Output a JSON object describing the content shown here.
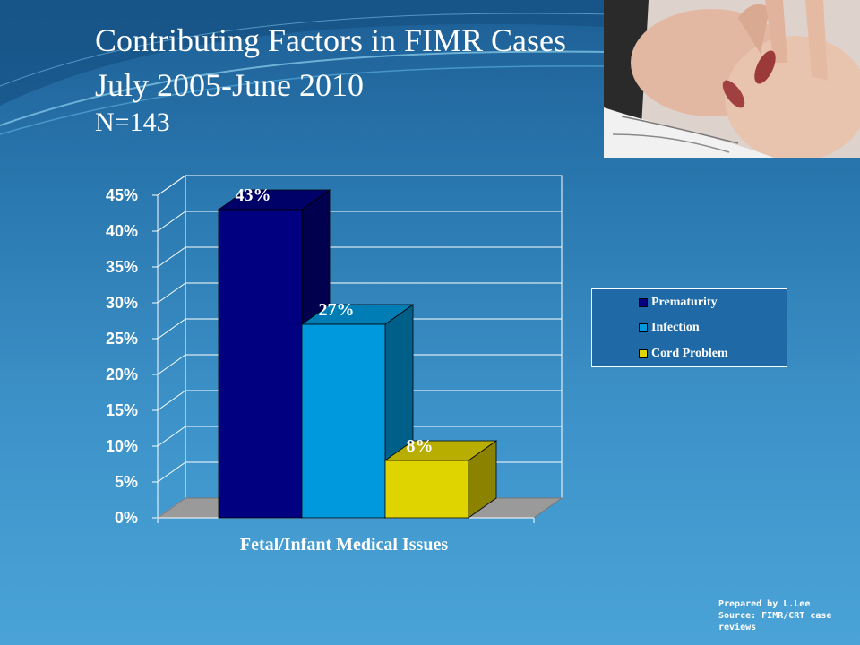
{
  "slide": {
    "title_line1": "Contributing Factors in FIMR Cases",
    "title_line2": "July 2005-June 2010",
    "title_line3": "N=143",
    "credits": [
      "Prepared by L.Lee",
      "Source: FIMR/CRT case",
      "reviews"
    ]
  },
  "chart_data": {
    "type": "bar",
    "title": "",
    "xlabel": "Fetal/Infant Medical Issues",
    "ylabel": "",
    "categories": [
      "Fetal/Infant Medical Issues"
    ],
    "series": [
      {
        "name": "Prematurity",
        "values": [
          43
        ],
        "label": "43%",
        "color": "#000080"
      },
      {
        "name": "Infection",
        "values": [
          27
        ],
        "label": "27%",
        "color": "#0099dd"
      },
      {
        "name": "Cord Problem",
        "values": [
          8
        ],
        "label": "8%",
        "color": "#e0d400"
      }
    ],
    "ylim": [
      0,
      45
    ],
    "yticks": [
      "0%",
      "5%",
      "10%",
      "15%",
      "20%",
      "25%",
      "30%",
      "35%",
      "40%",
      "45%"
    ],
    "grid": true,
    "three_d": true,
    "legend_position": "right"
  },
  "colors": {
    "background_top": "#1d5f95",
    "background_bottom": "#4aa3d7",
    "floor": "#9a9a9a",
    "axis": "#ffffff"
  }
}
